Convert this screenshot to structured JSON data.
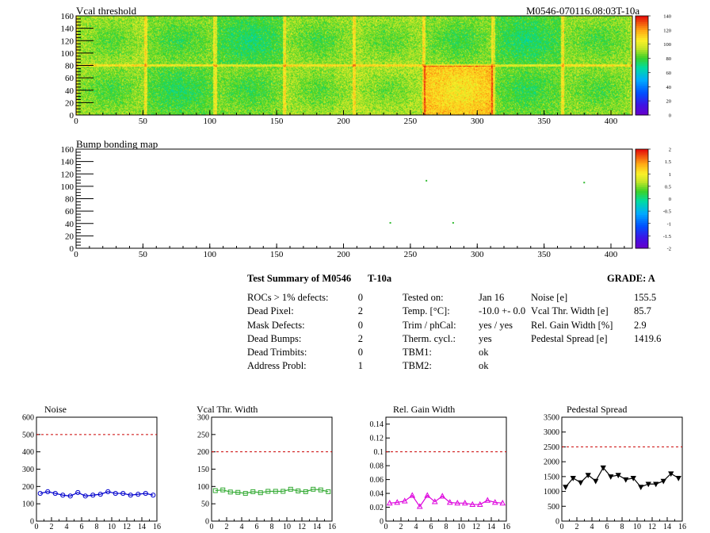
{
  "header": {
    "title": "Vcal threshold",
    "module_id": "M0546-070116.08:03T-10a"
  },
  "summary": {
    "title": "Test Summary of M0546",
    "test": "T-10a",
    "grade_label": "GRADE:  A",
    "col1": [
      {
        "label": "ROCs > 1% defects:",
        "value": "0"
      },
      {
        "label": "Dead Pixel:",
        "value": "2"
      },
      {
        "label": "Mask Defects:",
        "value": "0"
      },
      {
        "label": "Dead Bumps:",
        "value": "2"
      },
      {
        "label": "Dead Trimbits:",
        "value": "0"
      },
      {
        "label": "Address Probl:",
        "value": "1"
      }
    ],
    "col2": [
      {
        "label": "Tested on:",
        "value": "Jan 16"
      },
      {
        "label": "Temp. [°C]:",
        "value": "-10.0 +- 0.0"
      },
      {
        "label": "Trim / phCal:",
        "value": "yes / yes"
      },
      {
        "label": "Therm. cycl.:",
        "value": "yes"
      },
      {
        "label": "TBM1:",
        "value": "ok"
      },
      {
        "label": "TBM2:",
        "value": "ok"
      }
    ],
    "col3": [
      {
        "label": "Noise [e]",
        "value": "155.5"
      },
      {
        "label": "Vcal Thr. Width [e]",
        "value": "85.7"
      },
      {
        "label": "Rel. Gain Width [%]",
        "value": "2.9"
      },
      {
        "label": "Pedestal Spread [e]",
        "value": "1419.6"
      }
    ]
  },
  "chart_data": [
    {
      "type": "heatmap",
      "title": "Vcal threshold",
      "xlim": [
        0,
        416
      ],
      "ylim": [
        0,
        160
      ],
      "xticks": [
        "0",
        "50",
        "100",
        "150",
        "200",
        "250",
        "300",
        "350",
        "400"
      ],
      "yticks": [
        "0",
        "20",
        "40",
        "60",
        "80",
        "100",
        "120",
        "140",
        "160"
      ],
      "colorbar": {
        "min": 0,
        "max": 140,
        "ticks": [
          "0",
          "20",
          "40",
          "60",
          "80",
          "100",
          "120",
          "140"
        ]
      },
      "roc_means": {
        "top": [
          92,
          88,
          82,
          90,
          92,
          88,
          82,
          90
        ],
        "bottom": [
          90,
          84,
          88,
          92,
          94,
          115,
          86,
          90
        ]
      }
    },
    {
      "type": "heatmap",
      "title": "Bump bonding map",
      "xlim": [
        0,
        416
      ],
      "ylim": [
        0,
        160
      ],
      "xticks": [
        "0",
        "50",
        "100",
        "150",
        "200",
        "250",
        "300",
        "350",
        "400"
      ],
      "yticks": [
        "0",
        "20",
        "40",
        "60",
        "80",
        "100",
        "120",
        "140",
        "160"
      ],
      "colorbar": {
        "min": -2,
        "max": 2,
        "ticks": [
          "-2",
          "-1.5",
          "-1",
          "-0.5",
          "0",
          "0.5",
          "1",
          "1.5",
          "2"
        ]
      },
      "points": [
        {
          "x": 235,
          "y": 41
        },
        {
          "x": 282,
          "y": 41
        },
        {
          "x": 262,
          "y": 109
        },
        {
          "x": 380,
          "y": 106
        }
      ]
    },
    {
      "type": "line",
      "title": "Noise",
      "x": [
        0,
        1,
        2,
        3,
        4,
        5,
        6,
        7,
        8,
        9,
        10,
        11,
        12,
        13,
        14,
        15
      ],
      "values": [
        160,
        170,
        160,
        150,
        145,
        165,
        145,
        150,
        155,
        170,
        160,
        160,
        150,
        155,
        160,
        150
      ],
      "reference": 500,
      "xlim": [
        0,
        16
      ],
      "ylim": [
        0,
        600
      ],
      "xticks": [
        "0",
        "2",
        "4",
        "6",
        "8",
        "10",
        "12",
        "14",
        "16"
      ],
      "yticks": [
        "0",
        "100",
        "200",
        "300",
        "400",
        "500",
        "600"
      ],
      "color": "#0000cc",
      "marker": "circle"
    },
    {
      "type": "line",
      "title": "Vcal Thr. Width",
      "x": [
        0,
        1,
        2,
        3,
        4,
        5,
        6,
        7,
        8,
        9,
        10,
        11,
        12,
        13,
        14,
        15
      ],
      "values": [
        88,
        90,
        84,
        83,
        80,
        85,
        82,
        86,
        86,
        86,
        92,
        87,
        85,
        92,
        90,
        85
      ],
      "reference": 200,
      "xlim": [
        0,
        16
      ],
      "ylim": [
        0,
        300
      ],
      "xticks": [
        "0",
        "2",
        "4",
        "6",
        "8",
        "10",
        "12",
        "14",
        "16"
      ],
      "yticks": [
        "0",
        "50",
        "100",
        "150",
        "200",
        "250",
        "300"
      ],
      "color": "#33aa33",
      "marker": "square"
    },
    {
      "type": "line",
      "title": "Rel. Gain Width",
      "x": [
        0,
        1,
        2,
        3,
        4,
        5,
        6,
        7,
        8,
        9,
        10,
        11,
        12,
        13,
        14,
        15
      ],
      "values": [
        0.026,
        0.027,
        0.029,
        0.037,
        0.021,
        0.037,
        0.028,
        0.036,
        0.027,
        0.026,
        0.026,
        0.024,
        0.024,
        0.03,
        0.027,
        0.026
      ],
      "reference": 0.1,
      "xlim": [
        0,
        16
      ],
      "ylim": [
        0,
        0.15
      ],
      "xticks": [
        "0",
        "2",
        "4",
        "6",
        "8",
        "10",
        "12",
        "14",
        "16"
      ],
      "yticks": [
        "0",
        "0.02",
        "0.04",
        "0.06",
        "0.08",
        "0.1",
        "0.12",
        "0.14"
      ],
      "color": "#dd00dd",
      "marker": "triangle"
    },
    {
      "type": "line",
      "title": "Pedestal Spread",
      "x": [
        0,
        1,
        2,
        3,
        4,
        5,
        6,
        7,
        8,
        9,
        10,
        11,
        12,
        13,
        14,
        15
      ],
      "values": [
        1150,
        1450,
        1300,
        1550,
        1350,
        1800,
        1500,
        1550,
        1400,
        1450,
        1150,
        1250,
        1250,
        1350,
        1600,
        1450
      ],
      "reference": 2500,
      "xlim": [
        0,
        16
      ],
      "ylim": [
        0,
        3500
      ],
      "xticks": [
        "0",
        "2",
        "4",
        "6",
        "8",
        "10",
        "12",
        "14",
        "16"
      ],
      "yticks": [
        "0",
        "500",
        "1000",
        "1500",
        "2000",
        "2500",
        "3000",
        "3500"
      ],
      "color": "#000000",
      "marker": "triangle-down"
    }
  ]
}
